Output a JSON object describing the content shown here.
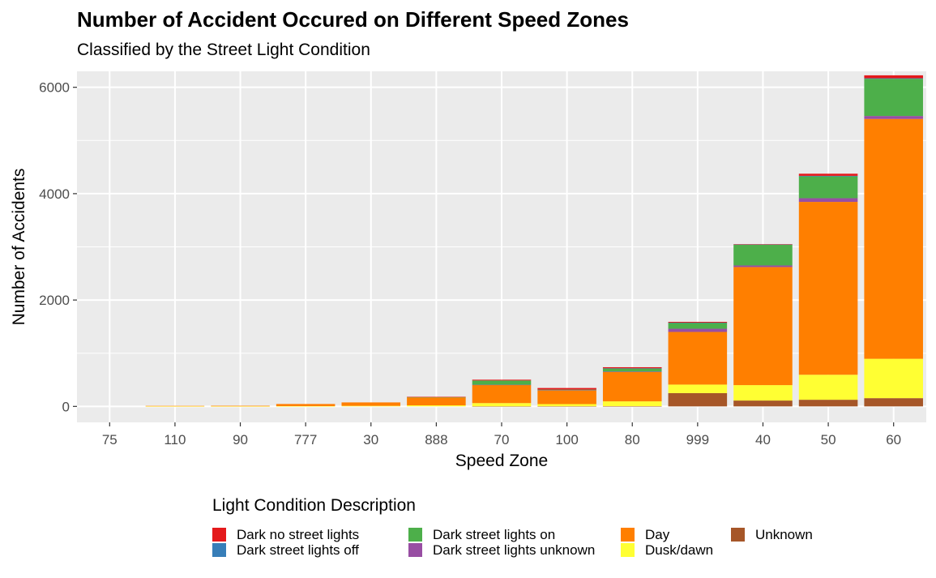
{
  "chart_data": {
    "type": "bar",
    "stacked": true,
    "title": "Number of Accident Occured on Different Speed Zones",
    "subtitle": "Classified by the Street Light Condition",
    "xlabel": "Speed Zone",
    "ylabel": "Number of Accidents",
    "ylim": [
      -300,
      6300
    ],
    "yticks": [
      0,
      2000,
      4000,
      6000
    ],
    "yticklabels": [
      "0",
      "2000",
      "4000",
      "6000"
    ],
    "grid": true,
    "legend_position": "bottom",
    "legend_title": "Light Condition Description",
    "categories": [
      "75",
      "110",
      "90",
      "777",
      "30",
      "888",
      "70",
      "100",
      "80",
      "999",
      "40",
      "50",
      "60"
    ],
    "series": [
      {
        "name": "Unknown",
        "color": "#A65628",
        "values": [
          0,
          0,
          0,
          0,
          0,
          0,
          2,
          3,
          5,
          250,
          110,
          125,
          155
        ]
      },
      {
        "name": "Dusk/dawn",
        "color": "#FFFF33",
        "values": [
          0,
          2,
          2,
          5,
          10,
          20,
          60,
          40,
          90,
          160,
          290,
          470,
          740
        ]
      },
      {
        "name": "Day",
        "color": "#FF7F00",
        "values": [
          0,
          8,
          10,
          40,
          65,
          150,
          340,
          260,
          550,
          990,
          2220,
          3250,
          4510
        ]
      },
      {
        "name": "Dark street lights unknown",
        "color": "#984EA3",
        "values": [
          0,
          0,
          0,
          0,
          0,
          0,
          5,
          3,
          10,
          60,
          30,
          70,
          55
        ]
      },
      {
        "name": "Dark street lights on",
        "color": "#4DAF4A",
        "values": [
          0,
          0,
          0,
          0,
          0,
          5,
          80,
          10,
          60,
          110,
          390,
          410,
          700
        ]
      },
      {
        "name": "Dark street lights off",
        "color": "#377EB8",
        "values": [
          0,
          0,
          0,
          0,
          0,
          0,
          0,
          0,
          2,
          5,
          5,
          10,
          10
        ]
      },
      {
        "name": "Dark no street lights",
        "color": "#E41A1C",
        "values": [
          0,
          0,
          0,
          0,
          0,
          5,
          15,
          30,
          20,
          15,
          5,
          40,
          55
        ]
      }
    ],
    "legend_order": [
      "Dark no street lights",
      "Dark street lights off",
      "Dark street lights on",
      "Dark street lights unknown",
      "Day",
      "Dusk/dawn",
      "Unknown"
    ]
  }
}
